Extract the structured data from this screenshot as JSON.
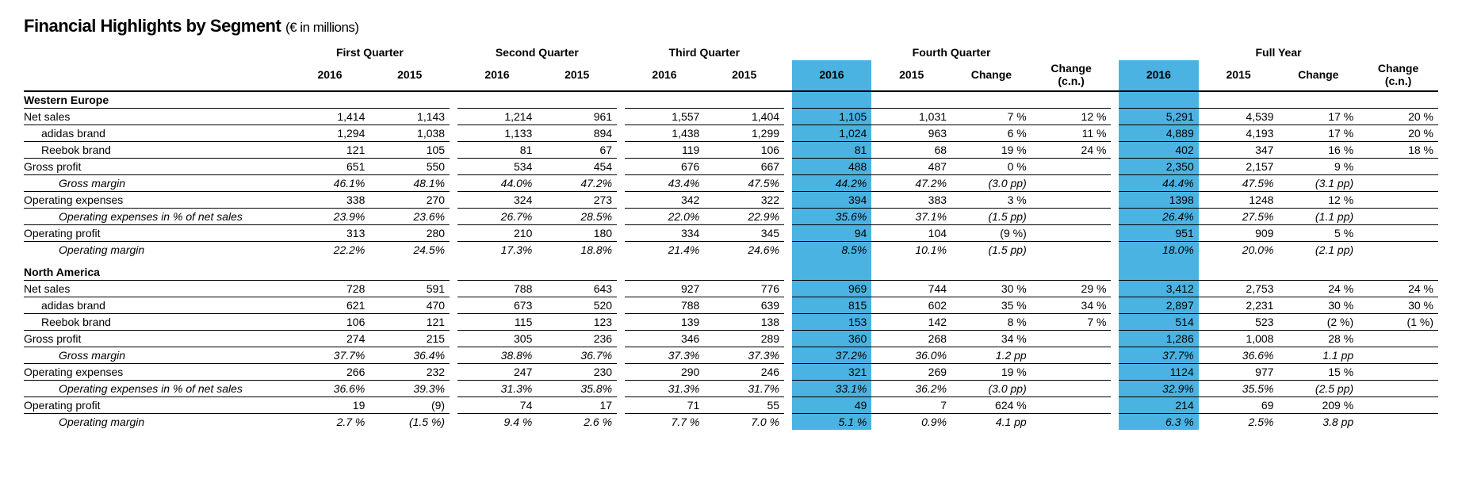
{
  "title": "Financial Highlights by Segment",
  "units": "(€ in millions)",
  "colors": {
    "highlight": "#4ab3e2",
    "text": "#000000",
    "background": "#ffffff",
    "rule": "#000000"
  },
  "table": {
    "group_headers": [
      "First Quarter",
      "Second Quarter",
      "Third Quarter",
      "Fourth Quarter",
      "Full Year"
    ],
    "year_headers": [
      "2016",
      "2015",
      "2016",
      "2015",
      "2016",
      "2015",
      "2016",
      "2015",
      "Change",
      "Change (c.n.)",
      "2016",
      "2015",
      "Change",
      "Change (c.n.)"
    ],
    "year_bold": [
      true,
      false,
      true,
      false,
      true,
      false,
      true,
      false,
      false,
      false,
      true,
      false,
      false,
      false
    ],
    "year_hl": [
      false,
      false,
      false,
      false,
      false,
      false,
      true,
      false,
      false,
      false,
      true,
      false,
      false,
      false
    ],
    "hl_cols": [
      6,
      10
    ],
    "gap_after": [
      1,
      3,
      5,
      9
    ],
    "regions": [
      {
        "name": "Western Europe",
        "rows": [
          {
            "label": "Net sales",
            "indent": 0,
            "italic": false,
            "thin": true,
            "cells": [
              "1,414",
              "1,143",
              "1,214",
              "961",
              "1,557",
              "1,404",
              "1,105",
              "1,031",
              "7 %",
              "12 %",
              "5,291",
              "4,539",
              "17 %",
              "20 %"
            ]
          },
          {
            "label": "adidas brand",
            "indent": 1,
            "italic": false,
            "thin": true,
            "cells": [
              "1,294",
              "1,038",
              "1,133",
              "894",
              "1,438",
              "1,299",
              "1,024",
              "963",
              "6 %",
              "11 %",
              "4,889",
              "4,193",
              "17 %",
              "20 %"
            ]
          },
          {
            "label": "Reebok brand",
            "indent": 1,
            "italic": false,
            "thin": true,
            "cells": [
              "121",
              "105",
              "81",
              "67",
              "119",
              "106",
              "81",
              "68",
              "19 %",
              "24 %",
              "402",
              "347",
              "16 %",
              "18 %"
            ]
          },
          {
            "label": "Gross profit",
            "indent": 0,
            "italic": false,
            "thin": true,
            "cells": [
              "651",
              "550",
              "534",
              "454",
              "676",
              "667",
              "488",
              "487",
              "0 %",
              "",
              "2,350",
              "2,157",
              "9 %",
              ""
            ]
          },
          {
            "label": "Gross margin",
            "indent": 2,
            "italic": true,
            "thin": true,
            "cells": [
              "46.1%",
              "48.1%",
              "44.0%",
              "47.2%",
              "43.4%",
              "47.5%",
              "44.2%",
              "47.2%",
              "(3.0 pp)",
              "",
              "44.4%",
              "47.5%",
              "(3.1 pp)",
              ""
            ]
          },
          {
            "label": "Operating expenses",
            "indent": 0,
            "italic": false,
            "thin": true,
            "cells": [
              "338",
              "270",
              "324",
              "273",
              "342",
              "322",
              "394",
              "383",
              "3 %",
              "",
              "1398",
              "1248",
              "12 %",
              ""
            ]
          },
          {
            "label": "Operating expenses in % of net sales",
            "indent": 2,
            "italic": true,
            "thin": true,
            "cells": [
              "23.9%",
              "23.6%",
              "26.7%",
              "28.5%",
              "22.0%",
              "22.9%",
              "35.6%",
              "37.1%",
              "(1.5 pp)",
              "",
              "26.4%",
              "27.5%",
              "(1.1 pp)",
              ""
            ]
          },
          {
            "label": "Operating profit",
            "indent": 0,
            "italic": false,
            "thin": true,
            "cells": [
              "313",
              "280",
              "210",
              "180",
              "334",
              "345",
              "94",
              "104",
              "(9 %)",
              "",
              "951",
              "909",
              "5 %",
              ""
            ]
          },
          {
            "label": "Operating margin",
            "indent": 2,
            "italic": true,
            "thin": false,
            "cells": [
              "22.2%",
              "24.5%",
              "17.3%",
              "18.8%",
              "21.4%",
              "24.6%",
              "8.5%",
              "10.1%",
              "(1.5 pp)",
              "",
              "18.0%",
              "20.0%",
              "(2.1 pp)",
              ""
            ]
          }
        ]
      },
      {
        "name": "North America",
        "rows": [
          {
            "label": "Net sales",
            "indent": 0,
            "italic": false,
            "thin": true,
            "cells": [
              "728",
              "591",
              "788",
              "643",
              "927",
              "776",
              "969",
              "744",
              "30 %",
              "29 %",
              "3,412",
              "2,753",
              "24 %",
              "24 %"
            ]
          },
          {
            "label": "adidas brand",
            "indent": 1,
            "italic": false,
            "thin": true,
            "cells": [
              "621",
              "470",
              "673",
              "520",
              "788",
              "639",
              "815",
              "602",
              "35 %",
              "34 %",
              "2,897",
              "2,231",
              "30 %",
              "30 %"
            ]
          },
          {
            "label": "Reebok brand",
            "indent": 1,
            "italic": false,
            "thin": true,
            "cells": [
              "106",
              "121",
              "115",
              "123",
              "139",
              "138",
              "153",
              "142",
              "8 %",
              "7 %",
              "514",
              "523",
              "(2 %)",
              "(1 %)"
            ]
          },
          {
            "label": "Gross profit",
            "indent": 0,
            "italic": false,
            "thin": true,
            "cells": [
              "274",
              "215",
              "305",
              "236",
              "346",
              "289",
              "360",
              "268",
              "34 %",
              "",
              "1,286",
              "1,008",
              "28 %",
              ""
            ]
          },
          {
            "label": "Gross margin",
            "indent": 2,
            "italic": true,
            "thin": true,
            "cells": [
              "37.7%",
              "36.4%",
              "38.8%",
              "36.7%",
              "37.3%",
              "37.3%",
              "37.2%",
              "36.0%",
              "1.2 pp",
              "",
              "37.7%",
              "36.6%",
              "1.1 pp",
              ""
            ]
          },
          {
            "label": "Operating expenses",
            "indent": 0,
            "italic": false,
            "thin": true,
            "cells": [
              "266",
              "232",
              "247",
              "230",
              "290",
              "246",
              "321",
              "269",
              "19 %",
              "",
              "1124",
              "977",
              "15 %",
              ""
            ]
          },
          {
            "label": "Operating expenses in % of net sales",
            "indent": 2,
            "italic": true,
            "thin": true,
            "cells": [
              "36.6%",
              "39.3%",
              "31.3%",
              "35.8%",
              "31.3%",
              "31.7%",
              "33.1%",
              "36.2%",
              "(3.0 pp)",
              "",
              "32.9%",
              "35.5%",
              "(2.5 pp)",
              ""
            ]
          },
          {
            "label": "Operating profit",
            "indent": 0,
            "italic": false,
            "thin": true,
            "cells": [
              "19",
              "(9)",
              "74",
              "17",
              "71",
              "55",
              "49",
              "7",
              "624 %",
              "",
              "214",
              "69",
              "209 %",
              ""
            ]
          },
          {
            "label": "Operating margin",
            "indent": 2,
            "italic": true,
            "thin": false,
            "cells": [
              "2.7 %",
              "(1.5 %)",
              "9.4 %",
              "2.6 %",
              "7.7 %",
              "7.0 %",
              "5.1 %",
              "0.9%",
              "4.1 pp",
              "",
              "6.3 %",
              "2.5%",
              "3.8 pp",
              ""
            ]
          }
        ]
      }
    ]
  }
}
